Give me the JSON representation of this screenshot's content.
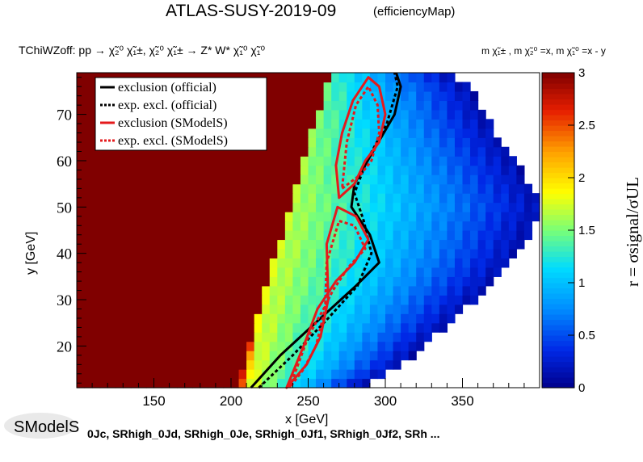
{
  "chart_data": {
    "type": "heatmap",
    "title": "ATLAS-SUSY-2019-09",
    "subtitle": "(efficiencyMap)",
    "process": "TChiWZoff: pp  → χ̃₂⁰ χ̃₁±, χ̃₂⁰ χ̃₁± → Z* W* χ̃₁⁰ χ̃₁⁰",
    "mass_relation": "m χ̃₁± , m χ̃₂⁰ =x, m χ̃₁⁰ =x - y",
    "xlabel": "x [GeV]",
    "ylabel": "y [GeV]",
    "zlabel": "r =  σsignal/σUL",
    "xlim": [
      100,
      400
    ],
    "ylim": [
      11,
      79
    ],
    "zlim": [
      0,
      3
    ],
    "x_ticks": [
      150,
      200,
      250,
      300,
      350
    ],
    "y_ticks": [
      20,
      30,
      40,
      50,
      60,
      70
    ],
    "z_ticks": [
      0,
      0.5,
      1,
      1.5,
      2,
      2.5,
      3
    ],
    "legend": {
      "placement": "top-left",
      "entries": [
        {
          "label": "exclusion (official)",
          "color": "#000000",
          "dash": false
        },
        {
          "label": "exp. excl. (official)",
          "color": "#000000",
          "dash": true
        },
        {
          "label": "exclusion (SModelS)",
          "color": "#e41a1c",
          "dash": false
        },
        {
          "label": "exp. excl. (SModelS)",
          "color": "#e41a1c",
          "dash": true
        }
      ]
    },
    "heatmap_boundary": {
      "right_edge": [
        [
          11,
          280
        ],
        [
          15,
          305
        ],
        [
          20,
          322
        ],
        [
          25,
          340
        ],
        [
          30,
          356
        ],
        [
          35,
          372
        ],
        [
          40,
          384
        ],
        [
          45,
          392
        ],
        [
          50,
          400
        ],
        [
          55,
          392
        ],
        [
          60,
          382
        ],
        [
          65,
          372
        ],
        [
          70,
          362
        ],
        [
          75,
          355
        ],
        [
          79,
          340
        ]
      ],
      "full_x_up_to": 203,
      "transition_to_green": [
        [
          11,
          212
        ],
        [
          20,
          215
        ],
        [
          30,
          218
        ],
        [
          40,
          222
        ],
        [
          50,
          225
        ],
        [
          60,
          228
        ],
        [
          70,
          232
        ],
        [
          79,
          235
        ]
      ]
    },
    "contours": {
      "exclusion_official": [
        [
          213,
          11
        ],
        [
          232,
          18
        ],
        [
          258,
          26
        ],
        [
          281,
          33
        ],
        [
          296,
          38
        ],
        [
          290,
          44
        ],
        [
          278,
          50
        ],
        [
          280,
          55
        ],
        [
          292,
          62
        ],
        [
          306,
          70
        ],
        [
          310,
          76
        ],
        [
          307,
          79
        ]
      ],
      "exp_excl_official": [
        [
          218,
          11
        ],
        [
          240,
          18
        ],
        [
          263,
          26
        ],
        [
          282,
          33
        ],
        [
          291,
          40
        ],
        [
          286,
          47
        ],
        [
          280,
          53
        ],
        [
          288,
          60
        ],
        [
          301,
          68
        ],
        [
          308,
          76
        ],
        [
          306,
          79
        ]
      ],
      "exclusion_smodels": [
        [
          [
            236,
            11
          ],
          [
            247,
            20
          ],
          [
            256,
            28
          ],
          [
            268,
            34
          ],
          [
            280,
            38
          ],
          [
            289,
            43
          ],
          [
            281,
            48
          ],
          [
            269,
            50
          ],
          [
            262,
            42
          ],
          [
            263,
            30
          ],
          [
            258,
            22
          ],
          [
            249,
            16
          ]
        ],
        [
          [
            270,
            52
          ],
          [
            280,
            55
          ],
          [
            287,
            60
          ],
          [
            296,
            64
          ],
          [
            300,
            70
          ],
          [
            296,
            76
          ],
          [
            289,
            78
          ],
          [
            279,
            73
          ],
          [
            272,
            66
          ],
          [
            268,
            59
          ]
        ]
      ],
      "exp_excl_smodels": [
        [
          [
            238,
            11
          ],
          [
            250,
            22
          ],
          [
            260,
            28
          ],
          [
            266,
            32
          ],
          [
            276,
            37
          ],
          [
            287,
            41
          ],
          [
            280,
            46
          ],
          [
            270,
            47
          ],
          [
            262,
            38
          ],
          [
            261,
            28
          ],
          [
            255,
            20
          ],
          [
            247,
            15
          ]
        ],
        [
          [
            272,
            54
          ],
          [
            284,
            57
          ],
          [
            291,
            60
          ],
          [
            296,
            66
          ],
          [
            295,
            72
          ],
          [
            289,
            76
          ],
          [
            281,
            72
          ],
          [
            275,
            64
          ]
        ]
      ]
    },
    "bottom_text": "0Jc, SRhigh_0Jd, SRhigh_0Je, SRhigh_0Jf1, SRhigh_0Jf2, SRh ...",
    "logo_text": "SModelS",
    "colors": {
      "max": "#800000",
      "mid": "#ffff00",
      "low": "#00bfff",
      "min": "#00008b"
    }
  }
}
